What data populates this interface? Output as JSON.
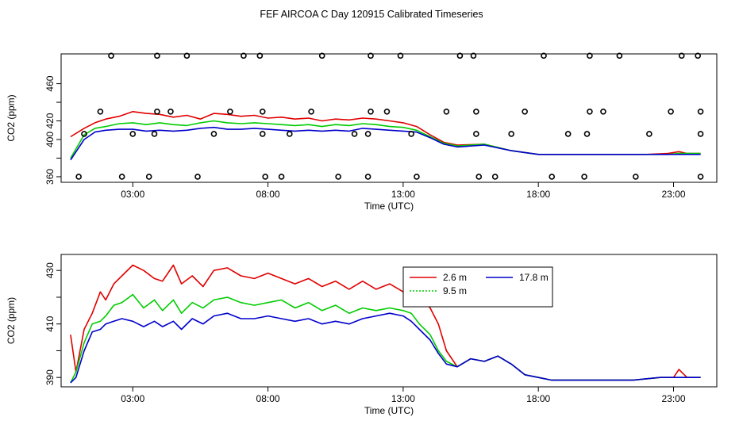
{
  "title": "FEF AIRCOA C  Day 120915  Calibrated Timeseries",
  "chart_data": [
    {
      "type": "line+scatter",
      "panel": "top",
      "xlabel": "Time (UTC)",
      "ylabel": "CO2 (ppm)",
      "xlim": [
        0.35,
        24.6
      ],
      "ylim": [
        354,
        492
      ],
      "xticks": [
        3,
        8,
        13,
        18,
        23
      ],
      "xtick_labels": [
        "03:00",
        "08:00",
        "13:00",
        "18:00",
        "23:00"
      ],
      "yticks": [
        360,
        380,
        400,
        420,
        440,
        460
      ],
      "ytick_labels": [
        "360",
        "",
        "400",
        "420",
        "",
        "460"
      ],
      "grid": false,
      "legend": "none",
      "series": [
        {
          "name": "2.6 m",
          "color": "#e00000",
          "x": [
            0.7,
            1.2,
            1.6,
            2.0,
            2.5,
            3.0,
            3.5,
            4.0,
            4.5,
            5.0,
            5.5,
            6.0,
            6.5,
            7.0,
            7.5,
            8.0,
            8.5,
            9.0,
            9.5,
            10.0,
            10.5,
            11.0,
            11.5,
            12.0,
            12.5,
            13.0,
            13.5,
            14.0,
            14.5,
            15.0,
            16.0,
            17.0,
            18.0,
            19.0,
            20.0,
            21.0,
            22.0,
            22.8,
            23.2,
            23.5,
            24.0
          ],
          "values": [
            403,
            412,
            418,
            422,
            425,
            430,
            428,
            427,
            424,
            426,
            422,
            428,
            427,
            425,
            426,
            423,
            424,
            422,
            423,
            420,
            422,
            421,
            423,
            422,
            420,
            418,
            414,
            405,
            397,
            394,
            395,
            388,
            384,
            384,
            384,
            384,
            384,
            385,
            387,
            385,
            385
          ]
        },
        {
          "name": "9.5 m",
          "color": "#00cc00",
          "x": [
            0.7,
            1.2,
            1.6,
            2.0,
            2.5,
            3.0,
            3.5,
            4.0,
            4.5,
            5.0,
            5.5,
            6.0,
            6.5,
            7.0,
            7.5,
            8.0,
            8.5,
            9.0,
            9.5,
            10.0,
            10.5,
            11.0,
            11.5,
            12.0,
            12.5,
            13.0,
            13.5,
            14.0,
            14.5,
            15.0,
            16.0,
            17.0,
            18.0,
            19.0,
            20.0,
            21.0,
            22.0,
            22.8,
            23.2,
            23.5,
            24.0
          ],
          "values": [
            380,
            405,
            412,
            414,
            417,
            418,
            416,
            418,
            416,
            415,
            418,
            420,
            418,
            417,
            418,
            417,
            416,
            415,
            416,
            414,
            416,
            415,
            417,
            416,
            414,
            413,
            410,
            403,
            396,
            393,
            395,
            388,
            384,
            384,
            384,
            384,
            384,
            384,
            385,
            385,
            385
          ]
        },
        {
          "name": "17.8 m",
          "color": "#0000cc",
          "x": [
            0.7,
            1.2,
            1.6,
            2.0,
            2.5,
            3.0,
            3.5,
            4.0,
            4.5,
            5.0,
            5.5,
            6.0,
            6.5,
            7.0,
            7.5,
            8.0,
            8.5,
            9.0,
            9.5,
            10.0,
            10.5,
            11.0,
            11.5,
            12.0,
            12.5,
            13.0,
            13.5,
            14.0,
            14.5,
            15.0,
            16.0,
            17.0,
            18.0,
            19.0,
            20.0,
            21.0,
            22.0,
            22.8,
            23.2,
            23.5,
            24.0
          ],
          "values": [
            378,
            400,
            408,
            410,
            411,
            411,
            409,
            410,
            409,
            410,
            412,
            413,
            411,
            411,
            412,
            411,
            410,
            409,
            410,
            409,
            410,
            409,
            412,
            411,
            410,
            409,
            408,
            402,
            395,
            392,
            394,
            388,
            384,
            384,
            384,
            384,
            384,
            384,
            384,
            384,
            384
          ]
        },
        {
          "name": "flags",
          "color": "#000000",
          "marker": "circle",
          "x": [
            2.2,
            3.9,
            5.0,
            7.1,
            7.7,
            10.0,
            11.8,
            12.9,
            15.1,
            15.6,
            18.2,
            19.9,
            21.0,
            23.3,
            23.9,
            1.8,
            3.9,
            4.4,
            6.6,
            7.8,
            9.6,
            11.8,
            12.4,
            14.6,
            15.7,
            17.5,
            20.4,
            19.9,
            22.9,
            24.0,
            1.2,
            3.0,
            3.8,
            6.0,
            7.8,
            8.8,
            11.2,
            11.7,
            13.3,
            15.7,
            17.0,
            19.1,
            19.8,
            22.1,
            24.0,
            1.0,
            2.6,
            3.6,
            5.4,
            7.9,
            8.5,
            10.6,
            11.7,
            13.5,
            15.8,
            16.4,
            18.5,
            19.7,
            21.6,
            24.0
          ],
          "values": [
            490,
            490,
            490,
            490,
            490,
            490,
            490,
            490,
            490,
            490,
            490,
            490,
            490,
            490,
            490,
            430,
            430,
            430,
            430,
            430,
            430,
            430,
            430,
            430,
            430,
            430,
            430,
            430,
            430,
            430,
            406,
            406,
            406,
            406,
            406,
            406,
            406,
            406,
            406,
            406,
            406,
            406,
            406,
            406,
            406,
            360,
            360,
            360,
            360,
            360,
            360,
            360,
            360,
            360,
            360,
            360,
            360,
            360,
            360,
            360
          ]
        }
      ]
    },
    {
      "type": "line",
      "panel": "bottom",
      "xlabel": "Time (UTC)",
      "ylabel": "CO2 (ppm)",
      "xlim": [
        0.35,
        24.6
      ],
      "ylim": [
        386.5,
        436
      ],
      "xticks": [
        3,
        8,
        13,
        18,
        23
      ],
      "xtick_labels": [
        "03:00",
        "08:00",
        "13:00",
        "18:00",
        "23:00"
      ],
      "yticks": [
        390,
        400,
        410,
        420,
        430
      ],
      "ytick_labels": [
        "390",
        "",
        "410",
        "",
        "430"
      ],
      "grid": false,
      "legend": "inside top-right",
      "series": [
        {
          "name": "2.6 m",
          "color": "#e00000",
          "x": [
            0.7,
            0.9,
            1.2,
            1.5,
            1.8,
            2.0,
            2.3,
            2.6,
            3.0,
            3.4,
            3.8,
            4.1,
            4.5,
            4.8,
            5.2,
            5.6,
            6.0,
            6.5,
            7.0,
            7.5,
            8.0,
            8.5,
            9.0,
            9.5,
            10.0,
            10.5,
            11.0,
            11.5,
            12.0,
            12.5,
            13.0,
            13.3,
            13.6,
            14.0,
            14.3,
            14.6,
            15.0,
            15.5,
            16.0,
            16.5,
            17.0,
            17.5,
            18.0,
            18.5,
            19.5,
            20.5,
            21.5,
            22.5,
            23.0,
            23.2,
            23.5,
            24.0
          ],
          "values": [
            406,
            392,
            408,
            414,
            422,
            419,
            425,
            428,
            432,
            430,
            427,
            426,
            432,
            425,
            428,
            424,
            430,
            431,
            428,
            427,
            429,
            427,
            425,
            427,
            424,
            426,
            423,
            426,
            423,
            425,
            422,
            424,
            420,
            416,
            410,
            400,
            394,
            397,
            396,
            398,
            395,
            391,
            390,
            389,
            389,
            389,
            389,
            390,
            390,
            393,
            390,
            390
          ]
        },
        {
          "name": "9.5 m",
          "color": "#00cc00",
          "x": [
            0.7,
            0.9,
            1.2,
            1.5,
            1.8,
            2.0,
            2.3,
            2.6,
            3.0,
            3.4,
            3.8,
            4.1,
            4.5,
            4.8,
            5.2,
            5.6,
            6.0,
            6.5,
            7.0,
            7.5,
            8.0,
            8.5,
            9.0,
            9.5,
            10.0,
            10.5,
            11.0,
            11.5,
            12.0,
            12.5,
            13.0,
            13.3,
            13.6,
            14.0,
            14.3,
            14.6,
            15.0,
            15.5,
            16.0,
            16.5,
            17.0,
            17.5,
            18.0,
            18.5,
            19.5,
            20.5,
            21.5,
            22.5,
            23.0,
            23.2,
            23.5,
            24.0
          ],
          "values": [
            388,
            392,
            403,
            410,
            411,
            413,
            417,
            418,
            421,
            416,
            419,
            415,
            419,
            414,
            418,
            416,
            419,
            420,
            418,
            417,
            418,
            419,
            416,
            418,
            415,
            417,
            414,
            416,
            415,
            416,
            415,
            414,
            410,
            406,
            400,
            396,
            394,
            397,
            396,
            398,
            395,
            391,
            390,
            389,
            389,
            389,
            389,
            390,
            390,
            390,
            390,
            390
          ]
        },
        {
          "name": "17.8 m",
          "color": "#0000cc",
          "x": [
            0.7,
            0.9,
            1.2,
            1.5,
            1.8,
            2.0,
            2.3,
            2.6,
            3.0,
            3.4,
            3.8,
            4.1,
            4.5,
            4.8,
            5.2,
            5.6,
            6.0,
            6.5,
            7.0,
            7.5,
            8.0,
            8.5,
            9.0,
            9.5,
            10.0,
            10.5,
            11.0,
            11.5,
            12.0,
            12.5,
            13.0,
            13.3,
            13.6,
            14.0,
            14.3,
            14.6,
            15.0,
            15.5,
            16.0,
            16.5,
            17.0,
            17.5,
            18.0,
            18.5,
            19.5,
            20.5,
            21.5,
            22.5,
            23.0,
            23.2,
            23.5,
            24.0
          ],
          "values": [
            388,
            390,
            400,
            407,
            408,
            410,
            411,
            412,
            411,
            409,
            411,
            409,
            411,
            408,
            412,
            410,
            413,
            414,
            412,
            412,
            413,
            412,
            411,
            412,
            410,
            411,
            410,
            412,
            413,
            414,
            413,
            411,
            408,
            404,
            399,
            395,
            394,
            397,
            396,
            398,
            395,
            391,
            390,
            389,
            389,
            389,
            389,
            390,
            390,
            390,
            390,
            390
          ]
        }
      ]
    }
  ]
}
